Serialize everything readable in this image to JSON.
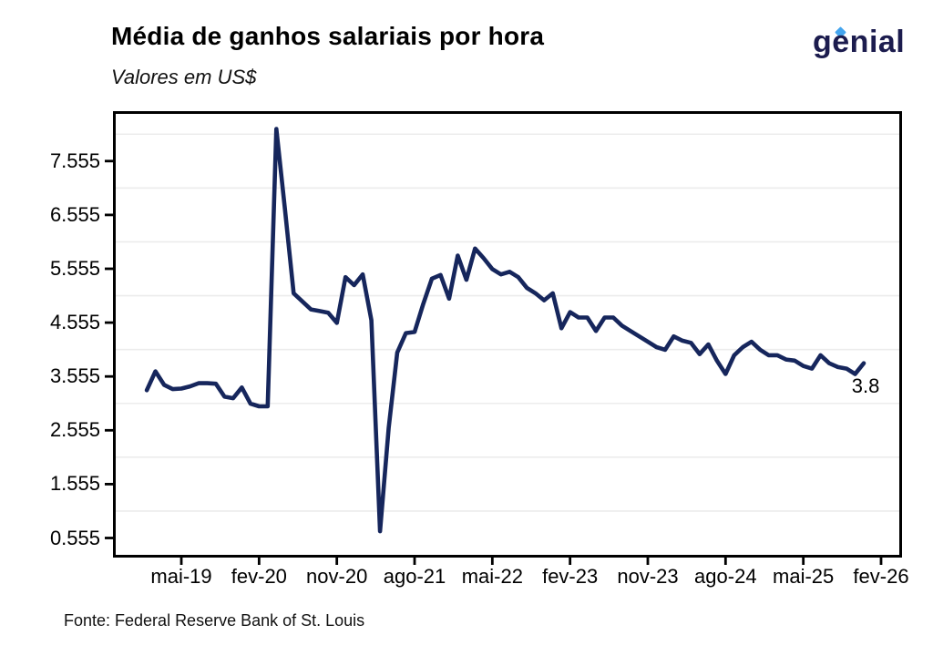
{
  "chart_data": {
    "type": "line",
    "title": "Média de ganhos salariais por hora",
    "subtitle": "Valores em US$",
    "source": "Fonte: Federal Reserve Bank of St. Louis",
    "xlabel": "",
    "ylabel": "",
    "legend": "none",
    "grid": "horizontal-light-gray",
    "line_color": "#16265C",
    "axis_color": "#000000",
    "grid_color": "#ECECEC",
    "end_label": "3.8",
    "ylim": [
      0.23,
      8.48
    ],
    "categories": [
      "jan-19",
      "fev-19",
      "mar-19",
      "abr-19",
      "mai-19",
      "jun-19",
      "jul-19",
      "ago-19",
      "set-19",
      "out-19",
      "nov-19",
      "dez-19",
      "jan-20",
      "fev-20",
      "mar-20",
      "abr-20",
      "mai-20",
      "jun-20",
      "jul-20",
      "ago-20",
      "set-20",
      "out-20",
      "nov-20",
      "dez-20",
      "jan-21",
      "fev-21",
      "mar-21",
      "abr-21",
      "mai-21",
      "jun-21",
      "jul-21",
      "ago-21",
      "set-21",
      "out-21",
      "nov-21",
      "dez-21",
      "jan-22",
      "fev-22",
      "mar-22",
      "abr-22",
      "mai-22",
      "jun-22",
      "jul-22",
      "ago-22",
      "set-22",
      "out-22",
      "nov-22",
      "dez-22",
      "jan-23",
      "fev-23",
      "mar-23",
      "abr-23",
      "mai-23",
      "jun-23",
      "jul-23",
      "ago-23",
      "set-23",
      "out-23",
      "nov-23",
      "dez-23",
      "jan-24",
      "fev-24",
      "mar-24",
      "abr-24",
      "mai-24",
      "jun-24",
      "jul-24",
      "ago-24",
      "set-24",
      "out-24",
      "nov-24",
      "dez-24",
      "jan-25",
      "fev-25",
      "mar-25",
      "abr-25",
      "mai-25",
      "jun-25",
      "jul-25",
      "ago-25",
      "set-25",
      "out-25",
      "nov-25",
      "dez-25"
    ],
    "values": [
      3.3,
      3.65,
      3.4,
      3.32,
      3.33,
      3.37,
      3.43,
      3.43,
      3.42,
      3.18,
      3.15,
      3.35,
      3.05,
      3.0,
      3.0,
      8.15,
      6.65,
      5.1,
      4.95,
      4.8,
      4.77,
      4.74,
      4.55,
      5.4,
      5.25,
      5.45,
      4.6,
      0.68,
      2.6,
      4.0,
      4.36,
      4.38,
      4.9,
      5.37,
      5.44,
      5.0,
      5.8,
      5.35,
      5.93,
      5.75,
      5.55,
      5.45,
      5.5,
      5.4,
      5.2,
      5.1,
      4.97,
      5.1,
      4.45,
      4.75,
      4.65,
      4.65,
      4.4,
      4.65,
      4.65,
      4.5,
      4.4,
      4.3,
      4.2,
      4.1,
      4.05,
      4.3,
      4.22,
      4.18,
      3.97,
      4.15,
      3.85,
      3.6,
      3.95,
      4.1,
      4.2,
      4.05,
      3.95,
      3.95,
      3.87,
      3.85,
      3.75,
      3.7,
      3.95,
      3.8,
      3.73,
      3.7,
      3.6,
      3.8
    ],
    "xtick_labels": [
      "mai-19",
      "fev-20",
      "nov-20",
      "ago-21",
      "mai-22",
      "fev-23",
      "nov-23",
      "ago-24",
      "mai-25",
      "fev-26"
    ],
    "xtick_month_indices": [
      4,
      13,
      22,
      31,
      40,
      49,
      58,
      67,
      76,
      85
    ],
    "ytick_labels": [
      "7.555",
      "6.555",
      "5.555",
      "4.555",
      "3.555",
      "2.555",
      "1.555",
      "0.555"
    ],
    "ytick_values": [
      7.555,
      6.555,
      5.555,
      4.555,
      3.555,
      2.555,
      1.555,
      0.555
    ],
    "gridline_values": [
      8.055,
      7.055,
      6.055,
      5.055,
      4.055,
      3.055,
      2.055,
      1.055
    ]
  },
  "branding": {
    "logo_text": "genial",
    "logo_color": "#1C1C4E",
    "accent_color": "#44A5EE"
  }
}
